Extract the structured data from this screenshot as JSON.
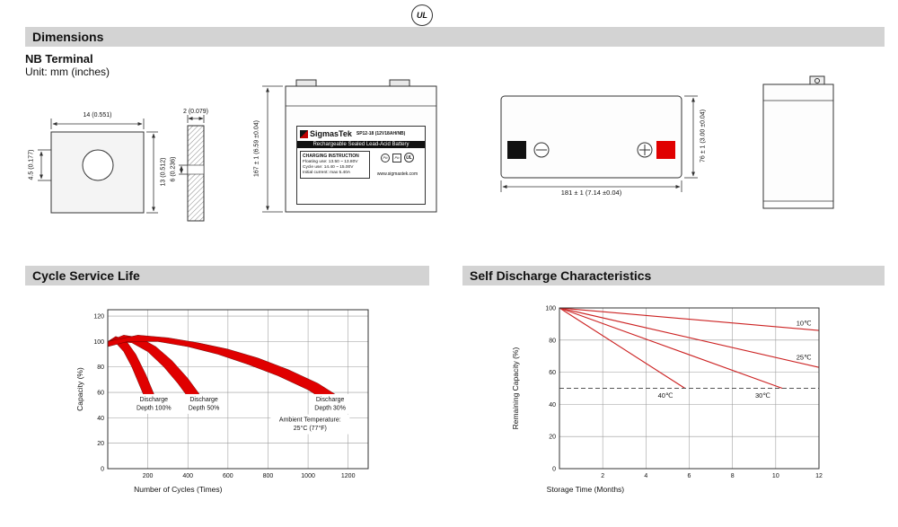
{
  "header": {
    "ul_mark": "UL"
  },
  "sections": {
    "dimensions": {
      "title": "Dimensions",
      "subtitle": "NB Terminal",
      "unit": "Unit: mm (inches)"
    }
  },
  "drawings": {
    "terminal_front": {
      "width_dim": "14 (0.551)",
      "hole_dim": "4.5 (0.177)",
      "height_dim": "13 (0.512)"
    },
    "terminal_side": {
      "thickness_dim": "2 (0.079)",
      "depth_dim": "6 (0.236)"
    },
    "battery_front": {
      "height_dim": "167 ± 1 (6.59 ±0.04)",
      "brand": "SigmasTek",
      "model": "SP12-18 (12V18AH/NB)",
      "type_line": "Rechargeable Sealed Lead-Acid Battery",
      "charging_title": "CHARGING INSTRUCTION",
      "charging_lines": [
        "Floating use: 13.50 ~ 13.80V",
        "Cycle use: 14.40 ~ 15.00V",
        "Initial current: max 5.40A"
      ],
      "website": "www.sigmastek.com",
      "pb_label": "Pb",
      "ul_label": "UL"
    },
    "battery_top": {
      "width_dim": "181 ± 1 (7.14 ±0.04)",
      "depth_dim": "76 ± 1 (3.00 ±0.04)"
    }
  },
  "chart_data": [
    {
      "type": "area",
      "title": "Cycle Service Life",
      "xlabel": "Number of Cycles (Times)",
      "ylabel": "Capacity (%)",
      "xlim": [
        0,
        1300
      ],
      "ylim": [
        0,
        125
      ],
      "xticks": [
        200,
        400,
        600,
        800,
        1000,
        1200
      ],
      "yticks": [
        0,
        20,
        40,
        60,
        80,
        100,
        120
      ],
      "grid": true,
      "bands": [
        {
          "name": "Discharge Depth 100%",
          "polygon": [
            [
              0,
              100
            ],
            [
              40,
              104
            ],
            [
              90,
              101
            ],
            [
              140,
              90
            ],
            [
              190,
              74
            ],
            [
              235,
              57
            ],
            [
              195,
              52
            ],
            [
              160,
              65
            ],
            [
              120,
              80
            ],
            [
              80,
              92
            ],
            [
              40,
              99
            ],
            [
              0,
              96
            ]
          ]
        },
        {
          "name": "Discharge Depth 50%",
          "polygon": [
            [
              0,
              100
            ],
            [
              80,
              105
            ],
            [
              160,
              103
            ],
            [
              240,
              96
            ],
            [
              320,
              85
            ],
            [
              400,
              71
            ],
            [
              465,
              57
            ],
            [
              420,
              52
            ],
            [
              350,
              67
            ],
            [
              280,
              80
            ],
            [
              200,
              92
            ],
            [
              120,
              99
            ],
            [
              50,
              100
            ],
            [
              0,
              96
            ]
          ]
        },
        {
          "name": "Discharge Depth 30%",
          "polygon": [
            [
              0,
              100
            ],
            [
              150,
              105
            ],
            [
              300,
              103
            ],
            [
              450,
              99
            ],
            [
              600,
              94
            ],
            [
              750,
              87
            ],
            [
              900,
              78
            ],
            [
              1050,
              67
            ],
            [
              1170,
              55
            ],
            [
              1120,
              50
            ],
            [
              1000,
              62
            ],
            [
              850,
              73
            ],
            [
              700,
              82
            ],
            [
              550,
              90
            ],
            [
              400,
              96
            ],
            [
              250,
              100
            ],
            [
              100,
              100
            ],
            [
              0,
              96
            ]
          ]
        }
      ],
      "annotations": [
        {
          "lines": [
            "Discharge",
            "Depth 100%"
          ],
          "x": 230,
          "y": 53
        },
        {
          "lines": [
            "Discharge",
            "Depth 50%"
          ],
          "x": 480,
          "y": 53
        },
        {
          "lines": [
            "Discharge",
            "Depth 30%"
          ],
          "x": 1110,
          "y": 53
        },
        {
          "lines": [
            "Ambient Temperature:",
            "25°C (77°F)"
          ],
          "x": 1010,
          "y": 37
        }
      ]
    },
    {
      "type": "line",
      "title": "Self Discharge Characteristics",
      "xlabel": "Storage Time (Months)",
      "ylabel": "Remaining Capacity (%)",
      "xlim": [
        0,
        12
      ],
      "ylim": [
        0,
        100
      ],
      "xticks": [
        2,
        4,
        6,
        8,
        10,
        12
      ],
      "yticks": [
        0,
        20,
        40,
        60,
        80,
        100
      ],
      "grid": true,
      "series": [
        {
          "name": "10℃",
          "points": [
            [
              0,
              100
            ],
            [
              12,
              86
            ]
          ]
        },
        {
          "name": "25℃",
          "points": [
            [
              0,
              100
            ],
            [
              12,
              63
            ]
          ]
        },
        {
          "name": "30℃",
          "points": [
            [
              0,
              100
            ],
            [
              10.3,
              50
            ]
          ]
        },
        {
          "name": "40℃",
          "points": [
            [
              0,
              100
            ],
            [
              5.8,
              50
            ]
          ]
        }
      ],
      "dashed_line_y": 50,
      "labels": [
        {
          "text": "10℃",
          "x": 11.3,
          "y": 89
        },
        {
          "text": "25℃",
          "x": 11.3,
          "y": 68
        },
        {
          "text": "40℃",
          "x": 4.9,
          "y": 44
        },
        {
          "text": "30℃",
          "x": 9.4,
          "y": 44
        }
      ]
    }
  ],
  "colors": {
    "section_header_bg": "#d3d3d3",
    "red": "#e00000",
    "line_red": "#cc2222",
    "terminal_neg": "#111111",
    "terminal_pos": "#e00000"
  }
}
